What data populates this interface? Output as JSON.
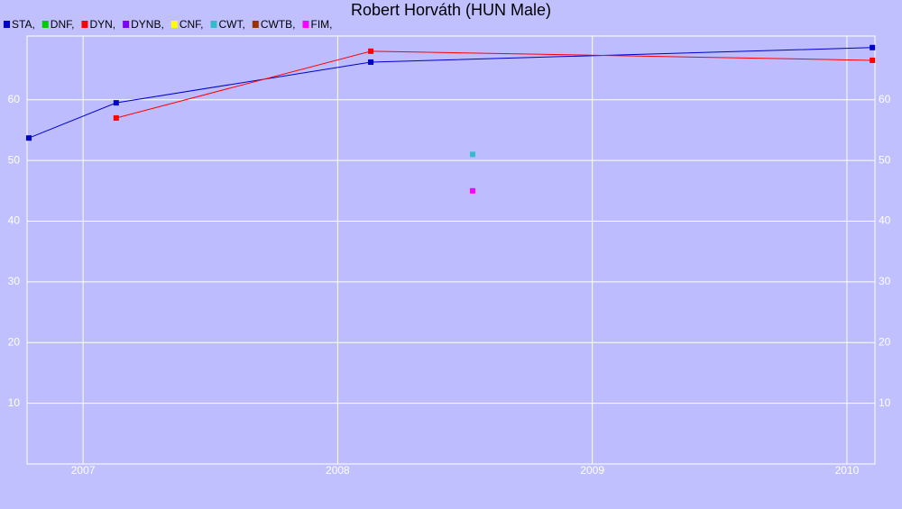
{
  "chart_data": {
    "type": "line",
    "title": "Robert Horváth (HUN Male)",
    "series": [
      {
        "name": "STA,",
        "color": "#0000cc",
        "x": [
          2006.787,
          2007.13,
          2008.13,
          2010.1
        ],
        "values": [
          53.7,
          59.5,
          66.2,
          68.6
        ]
      },
      {
        "name": "DNF,",
        "color": "#00cc00",
        "x": [],
        "values": []
      },
      {
        "name": "DYN,",
        "color": "#ff0000",
        "x": [
          2007.13,
          2008.13,
          2010.1
        ],
        "values": [
          57.0,
          68.0,
          66.5
        ]
      },
      {
        "name": "DYNB,",
        "color": "#7f00ff",
        "x": [],
        "values": []
      },
      {
        "name": "CNF,",
        "color": "#ffff00",
        "x": [],
        "values": []
      },
      {
        "name": "CWT,",
        "color": "#33bbcc",
        "x": [
          2008.53
        ],
        "values": [
          51.0
        ]
      },
      {
        "name": "CWTB,",
        "color": "#993300",
        "x": [],
        "values": []
      },
      {
        "name": "FIM,",
        "color": "#ff00ff",
        "x": [
          2008.53
        ],
        "values": [
          45.0
        ]
      }
    ],
    "xlim": [
      2006.78,
      2010.11
    ],
    "xticks": [
      2007,
      2008,
      2009,
      2010
    ],
    "ylim": [
      0,
      70.5
    ],
    "yticks": [
      10,
      20,
      30,
      40,
      50,
      60
    ],
    "grid": true
  }
}
